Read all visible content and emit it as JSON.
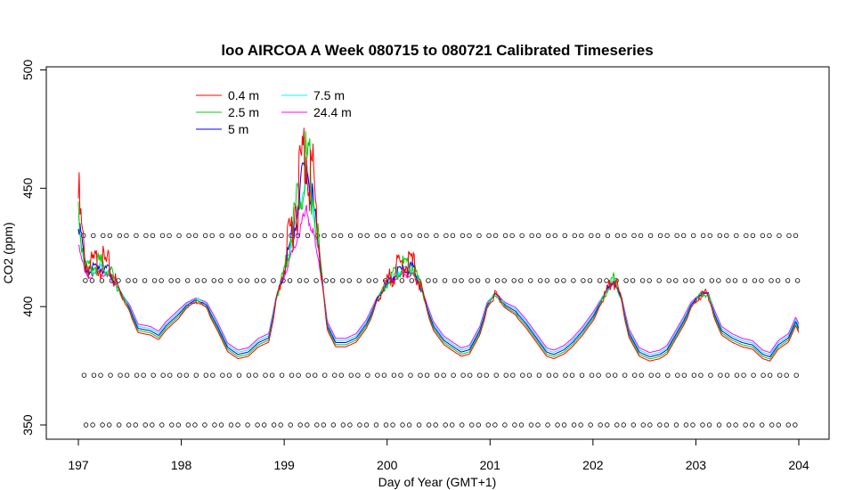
{
  "chart_data": {
    "type": "line",
    "title": "loo AIRCOA A  Week 080715 to 080721  Calibrated Timeseries",
    "xlabel": "Day of Year (GMT+1)",
    "ylabel": "CO2 (ppm)",
    "xlim": [
      197,
      204
    ],
    "ylim": [
      345,
      502
    ],
    "xticks": [
      "197",
      "198",
      "199",
      "200",
      "201",
      "202",
      "203",
      "204"
    ],
    "yticks": [
      "350",
      "400",
      "450",
      "500"
    ],
    "legend_position": "top-left",
    "series": [
      {
        "name": "0.4 m",
        "color": "#ff0000"
      },
      {
        "name": "2.5 m",
        "color": "#00cd00"
      },
      {
        "name": "5 m",
        "color": "#0000ff"
      },
      {
        "name": "7.5 m",
        "color": "#00ffff"
      },
      {
        "name": "24.4 m",
        "color": "#ff00ff"
      }
    ],
    "base_profile": [
      [
        197.0,
        430
      ],
      [
        197.03,
        420
      ],
      [
        197.07,
        411
      ],
      [
        197.12,
        410
      ],
      [
        197.2,
        412
      ],
      [
        197.3,
        410
      ],
      [
        197.4,
        403
      ],
      [
        197.5,
        397
      ],
      [
        197.58,
        389
      ],
      [
        197.7,
        388
      ],
      [
        197.78,
        386
      ],
      [
        197.85,
        390
      ],
      [
        197.95,
        394
      ],
      [
        198.05,
        398
      ],
      [
        198.15,
        400
      ],
      [
        198.25,
        398
      ],
      [
        198.35,
        390
      ],
      [
        198.45,
        381
      ],
      [
        198.55,
        378
      ],
      [
        198.65,
        379
      ],
      [
        198.75,
        383
      ],
      [
        198.85,
        385
      ],
      [
        198.92,
        400
      ],
      [
        199.0,
        410
      ],
      [
        199.08,
        423
      ],
      [
        199.15,
        436
      ],
      [
        199.22,
        446
      ],
      [
        199.28,
        434
      ],
      [
        199.35,
        413
      ],
      [
        199.42,
        390
      ],
      [
        199.5,
        383
      ],
      [
        199.6,
        383
      ],
      [
        199.7,
        385
      ],
      [
        199.8,
        391
      ],
      [
        199.9,
        400
      ],
      [
        200.05,
        408
      ],
      [
        200.15,
        411
      ],
      [
        200.25,
        411
      ],
      [
        200.35,
        402
      ],
      [
        200.45,
        390
      ],
      [
        200.55,
        384
      ],
      [
        200.65,
        381
      ],
      [
        200.72,
        379
      ],
      [
        200.8,
        380
      ],
      [
        200.9,
        388
      ],
      [
        200.97,
        398
      ],
      [
        201.05,
        402
      ],
      [
        201.15,
        398
      ],
      [
        201.25,
        396
      ],
      [
        201.35,
        391
      ],
      [
        201.45,
        385
      ],
      [
        201.55,
        379
      ],
      [
        201.62,
        378
      ],
      [
        201.72,
        380
      ],
      [
        201.8,
        383
      ],
      [
        201.9,
        388
      ],
      [
        202.0,
        394
      ],
      [
        202.1,
        401
      ],
      [
        202.2,
        407
      ],
      [
        202.28,
        400
      ],
      [
        202.35,
        387
      ],
      [
        202.45,
        379
      ],
      [
        202.55,
        377
      ],
      [
        202.65,
        378
      ],
      [
        202.72,
        380
      ],
      [
        202.8,
        386
      ],
      [
        202.88,
        392
      ],
      [
        202.95,
        398
      ],
      [
        203.05,
        402
      ],
      [
        203.12,
        402
      ],
      [
        203.18,
        395
      ],
      [
        203.25,
        388
      ],
      [
        203.35,
        385
      ],
      [
        203.45,
        383
      ],
      [
        203.55,
        382
      ],
      [
        203.65,
        378
      ],
      [
        203.72,
        377
      ],
      [
        203.8,
        382
      ],
      [
        203.9,
        385
      ],
      [
        203.97,
        392
      ],
      [
        204.0,
        389
      ]
    ],
    "marker_rows_ppm": [
      430,
      411,
      371,
      350
    ],
    "marker_spacing_days": 0.0833
  }
}
